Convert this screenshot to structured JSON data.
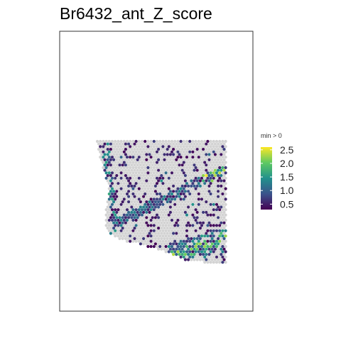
{
  "chart_data": {
    "type": "scatter",
    "title": "Br6432_ant_Z_score",
    "xlabel": "",
    "ylabel": "",
    "grid": false,
    "background_color": "#d3d3d3",
    "panel_border_color": "#333333",
    "legend": {
      "title": "min > 0",
      "placement": "right",
      "scale_min": 0.3,
      "scale_max": 2.6,
      "ticks": [
        {
          "value": 0.5,
          "label": "0.5"
        },
        {
          "value": 1.0,
          "label": "1.0"
        },
        {
          "value": 1.5,
          "label": "1.5"
        },
        {
          "value": 2.0,
          "label": "2.0"
        },
        {
          "value": 2.5,
          "label": "2.5"
        }
      ],
      "colormap": [
        "#440154",
        "#3b528b",
        "#21918c",
        "#5ec962",
        "#fde725"
      ]
    },
    "spots_description_values": {
      "band_upper_peak": 2.6,
      "band_lower_peak": 2.6,
      "scattered_typical": 0.5
    }
  }
}
